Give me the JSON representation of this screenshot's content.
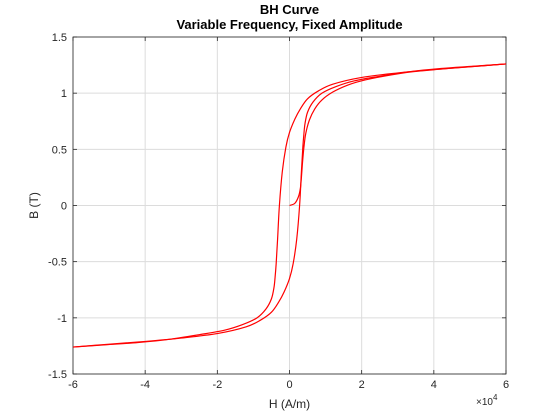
{
  "chart_data": {
    "type": "line",
    "title": "BH Curve",
    "subtitle": "Variable Frequency,  Fixed Amplitude",
    "xlabel": "H (A/m)",
    "ylabel": "B (T)",
    "x_exponent_label": "×10",
    "x_exponent_power": "4",
    "xlim": [
      -60000,
      60000
    ],
    "ylim": [
      -1.5,
      1.5
    ],
    "grid": true,
    "x_tick_values": [
      -6,
      -4,
      -2,
      0,
      2,
      4,
      6
    ],
    "x_tick_labels": [
      "-6",
      "-4",
      "-2",
      "0",
      "2",
      "4",
      "6"
    ],
    "y_tick_values": [
      -1.5,
      -1,
      -0.5,
      0,
      0.5,
      1,
      1.5
    ],
    "y_tick_labels": [
      "-1.5",
      "-1",
      "-0.5",
      "0",
      "0.5",
      "1",
      "1.5"
    ],
    "curve_color": "#ff0000",
    "series": [
      {
        "x": [
          0,
          1500,
          2500,
          3000,
          3300,
          3600,
          4000,
          4500,
          5500,
          7000,
          9000,
          12000,
          16000,
          20000,
          26000,
          34000,
          44000,
          54000,
          60000
        ],
        "y": [
          0,
          0.02,
          0.08,
          0.15,
          0.25,
          0.38,
          0.52,
          0.64,
          0.76,
          0.86,
          0.94,
          1.01,
          1.07,
          1.11,
          1.15,
          1.19,
          1.22,
          1.245,
          1.26
        ]
      },
      {
        "x": [
          60000,
          50000,
          40000,
          30000,
          20000,
          12000,
          8000,
          5000,
          3000,
          1500,
          0,
          -1000,
          -2000,
          -2800,
          -3300,
          -3700,
          -4000,
          -4300,
          -5000,
          -6500,
          -9000,
          -13000,
          -18000,
          -25000,
          -33000,
          -42000,
          -51000,
          -60000
        ],
        "y": [
          1.26,
          1.235,
          1.21,
          1.18,
          1.14,
          1.08,
          1.02,
          0.95,
          0.86,
          0.77,
          0.65,
          0.52,
          0.3,
          0.0,
          -0.3,
          -0.52,
          -0.64,
          -0.73,
          -0.83,
          -0.92,
          -1.0,
          -1.06,
          -1.11,
          -1.15,
          -1.19,
          -1.22,
          -1.24,
          -1.26
        ]
      },
      {
        "x": [
          -60000,
          -50000,
          -40000,
          -30000,
          -20000,
          -12000,
          -8000,
          -5000,
          -3000,
          -1500,
          0,
          1000,
          2000,
          2800,
          3300,
          3700,
          4000,
          4300,
          5000,
          6500,
          9000,
          13000,
          18000,
          25000,
          33000,
          42000,
          51000,
          60000
        ],
        "y": [
          -1.26,
          -1.235,
          -1.21,
          -1.18,
          -1.14,
          -1.08,
          -1.02,
          -0.95,
          -0.86,
          -0.77,
          -0.65,
          -0.52,
          -0.3,
          0.0,
          0.3,
          0.52,
          0.64,
          0.73,
          0.83,
          0.92,
          1.0,
          1.06,
          1.11,
          1.15,
          1.19,
          1.22,
          1.24,
          1.26
        ]
      }
    ]
  }
}
